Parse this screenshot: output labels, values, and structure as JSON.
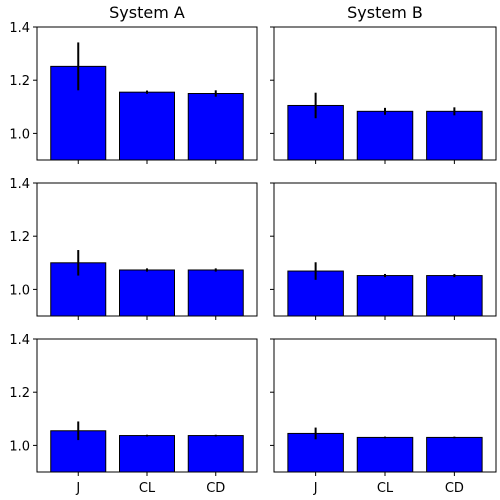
{
  "chart_data": {
    "type": "bar",
    "layout": {
      "rows": 3,
      "cols": 2,
      "sharex": true,
      "sharey": true
    },
    "categories": [
      "J",
      "CL",
      "CD"
    ],
    "column_titles": [
      "System A",
      "System B"
    ],
    "ylim": [
      0.9,
      1.4
    ],
    "yticks": [
      1.0,
      1.2,
      1.4
    ],
    "ytick_labels": [
      "1.0",
      "1.2",
      "1.4"
    ],
    "bar_color": "#0000ff",
    "edge_color": "#000000",
    "error_color": "#000000",
    "grid": false,
    "panels": [
      {
        "row": 0,
        "col": 0,
        "values": [
          1.252,
          1.155,
          1.15
        ],
        "errors": [
          0.09,
          0.006,
          0.012
        ]
      },
      {
        "row": 0,
        "col": 1,
        "values": [
          1.105,
          1.083,
          1.083
        ],
        "errors": [
          0.048,
          0.013,
          0.015
        ]
      },
      {
        "row": 1,
        "col": 0,
        "values": [
          1.1,
          1.073,
          1.073
        ],
        "errors": [
          0.048,
          0.006,
          0.006
        ]
      },
      {
        "row": 1,
        "col": 1,
        "values": [
          1.069,
          1.052,
          1.052
        ],
        "errors": [
          0.033,
          0.006,
          0.006
        ]
      },
      {
        "row": 2,
        "col": 0,
        "values": [
          1.055,
          1.037,
          1.037
        ],
        "errors": [
          0.035,
          0.003,
          0.003
        ]
      },
      {
        "row": 2,
        "col": 1,
        "values": [
          1.045,
          1.03,
          1.03
        ],
        "errors": [
          0.022,
          0.003,
          0.003
        ]
      }
    ]
  }
}
